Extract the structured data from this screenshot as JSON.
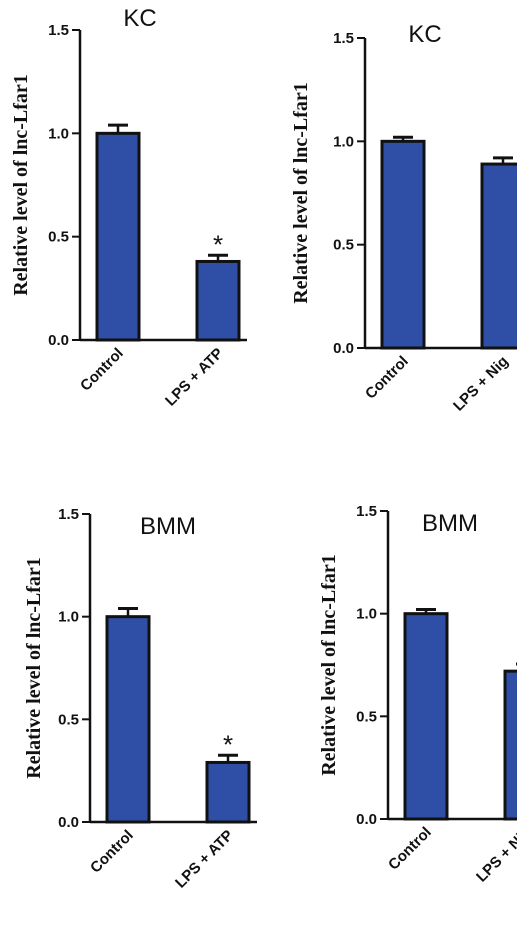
{
  "colors": {
    "bar_fill": "#2f4fa6",
    "bar_stroke": "#111111",
    "axis": "#111111",
    "text": "#111111"
  },
  "chart_data": [
    {
      "type": "bar",
      "title": "KC",
      "ylabel": "Relative level of lnc-Lfar1",
      "xlabel": "",
      "categories": [
        "Control",
        "LPS + ATP"
      ],
      "values": [
        1.0,
        0.38
      ],
      "errors": [
        0.04,
        0.03
      ],
      "significance": [
        "",
        "*"
      ],
      "ylim": [
        0,
        1.5
      ],
      "yticks": [
        "0.0",
        "0.5",
        "1.0",
        "1.5"
      ],
      "ytick_values": [
        0,
        0.5,
        1.0,
        1.5
      ],
      "grid": false,
      "legend": "none"
    },
    {
      "type": "bar",
      "title": "KC",
      "ylabel": "Relative level of lnc-Lfar1",
      "xlabel": "",
      "categories": [
        "Control",
        "LPS + Nig"
      ],
      "values": [
        1.0,
        0.89
      ],
      "errors": [
        0.02,
        0.03
      ],
      "significance": [
        "",
        ""
      ],
      "ylim": [
        0,
        1.5
      ],
      "yticks": [
        "0.0",
        "0.5",
        "1.0",
        "1.5"
      ],
      "ytick_values": [
        0,
        0.5,
        1.0,
        1.5
      ],
      "grid": false,
      "legend": "none"
    },
    {
      "type": "bar",
      "title": "BMM",
      "ylabel": "Relative level of lnc-Lfar1",
      "xlabel": "",
      "categories": [
        "Control",
        "LPS + ATP"
      ],
      "values": [
        1.0,
        0.29
      ],
      "errors": [
        0.04,
        0.035
      ],
      "significance": [
        "",
        "*"
      ],
      "ylim": [
        0,
        1.5
      ],
      "yticks": [
        "0.0",
        "0.5",
        "1.0",
        "1.5"
      ],
      "ytick_values": [
        0,
        0.5,
        1.0,
        1.5
      ],
      "grid": false,
      "legend": "none"
    },
    {
      "type": "bar",
      "title": "BMM",
      "ylabel": "Relative level of lnc-Lfar1",
      "xlabel": "",
      "categories": [
        "Control",
        "LPS + Nig"
      ],
      "values": [
        1.0,
        0.72
      ],
      "errors": [
        0.02,
        0.035
      ],
      "significance": [
        "",
        "*"
      ],
      "ylim": [
        0,
        1.5
      ],
      "yticks": [
        "0.0",
        "0.5",
        "1.0",
        "1.5"
      ],
      "ytick_values": [
        0,
        0.5,
        1.0,
        1.5
      ],
      "grid": false,
      "legend": "none"
    }
  ]
}
